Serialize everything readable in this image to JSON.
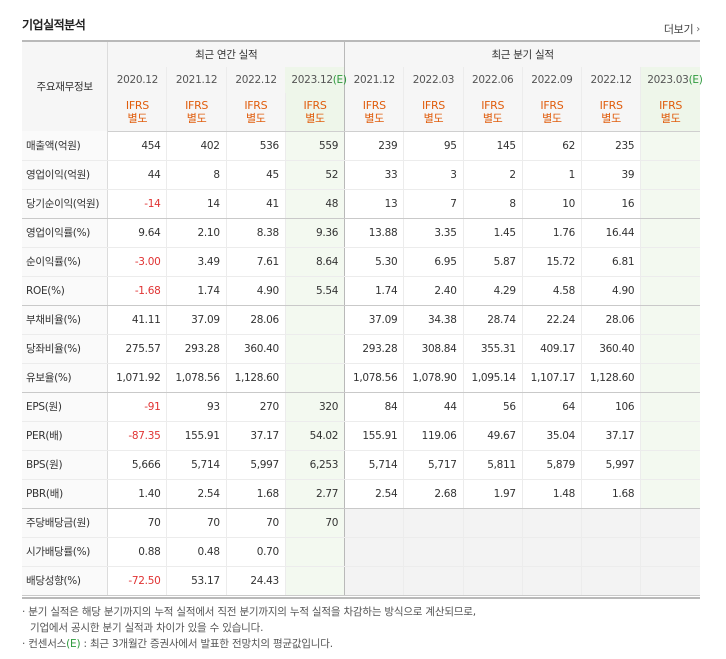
{
  "header": {
    "title": "기업실적분석",
    "more_label": "더보기"
  },
  "table": {
    "row_header_label": "주요재무정보",
    "group_annual": "최근 연간 실적",
    "group_quarter": "최근 분기 실적",
    "annual_periods": [
      "2020.12",
      "2021.12",
      "2022.12",
      "2023.12"
    ],
    "estimate_marker": "(E)",
    "quarter_periods": [
      "2021.12",
      "2022.03",
      "2022.06",
      "2022.09",
      "2022.12",
      "2023.03"
    ],
    "ifrs_line1": "IFRS",
    "ifrs_line2": "별도",
    "rows": [
      {
        "label": "매출액(억원)",
        "annual": [
          "454",
          "402",
          "536",
          "559"
        ],
        "quarter": [
          "239",
          "95",
          "145",
          "62",
          "235",
          ""
        ]
      },
      {
        "label": "영업이익(억원)",
        "annual": [
          "44",
          "8",
          "45",
          "52"
        ],
        "quarter": [
          "33",
          "3",
          "2",
          "1",
          "39",
          ""
        ]
      },
      {
        "label": "당기순이익(억원)",
        "annual": [
          "-14",
          "14",
          "41",
          "48"
        ],
        "quarter": [
          "13",
          "7",
          "8",
          "10",
          "16",
          ""
        ]
      },
      {
        "label": "영업이익률(%)",
        "annual": [
          "9.64",
          "2.10",
          "8.38",
          "9.36"
        ],
        "quarter": [
          "13.88",
          "3.35",
          "1.45",
          "1.76",
          "16.44",
          ""
        ]
      },
      {
        "label": "순이익률(%)",
        "annual": [
          "-3.00",
          "3.49",
          "7.61",
          "8.64"
        ],
        "quarter": [
          "5.30",
          "6.95",
          "5.87",
          "15.72",
          "6.81",
          ""
        ]
      },
      {
        "label": "ROE(%)",
        "annual": [
          "-1.68",
          "1.74",
          "4.90",
          "5.54"
        ],
        "quarter": [
          "1.74",
          "2.40",
          "4.29",
          "4.58",
          "4.90",
          ""
        ]
      },
      {
        "label": "부채비율(%)",
        "annual": [
          "41.11",
          "37.09",
          "28.06",
          ""
        ],
        "quarter": [
          "37.09",
          "34.38",
          "28.74",
          "22.24",
          "28.06",
          ""
        ]
      },
      {
        "label": "당좌비율(%)",
        "annual": [
          "275.57",
          "293.28",
          "360.40",
          ""
        ],
        "quarter": [
          "293.28",
          "308.84",
          "355.31",
          "409.17",
          "360.40",
          ""
        ]
      },
      {
        "label": "유보율(%)",
        "annual": [
          "1,071.92",
          "1,078.56",
          "1,128.60",
          ""
        ],
        "quarter": [
          "1,078.56",
          "1,078.90",
          "1,095.14",
          "1,107.17",
          "1,128.60",
          ""
        ]
      },
      {
        "label": "EPS(원)",
        "annual": [
          "-91",
          "93",
          "270",
          "320"
        ],
        "quarter": [
          "84",
          "44",
          "56",
          "64",
          "106",
          ""
        ]
      },
      {
        "label": "PER(배)",
        "annual": [
          "-87.35",
          "155.91",
          "37.17",
          "54.02"
        ],
        "quarter": [
          "155.91",
          "119.06",
          "49.67",
          "35.04",
          "37.17",
          ""
        ]
      },
      {
        "label": "BPS(원)",
        "annual": [
          "5,666",
          "5,714",
          "5,997",
          "6,253"
        ],
        "quarter": [
          "5,714",
          "5,717",
          "5,811",
          "5,879",
          "5,997",
          ""
        ]
      },
      {
        "label": "PBR(배)",
        "annual": [
          "1.40",
          "2.54",
          "1.68",
          "2.77"
        ],
        "quarter": [
          "2.54",
          "2.68",
          "1.97",
          "1.48",
          "1.68",
          ""
        ]
      },
      {
        "label": "주당배당금(원)",
        "annual": [
          "70",
          "70",
          "70",
          "70"
        ],
        "quarter": [
          "",
          "",
          "",
          "",
          "",
          ""
        ]
      },
      {
        "label": "시가배당률(%)",
        "annual": [
          "0.88",
          "0.48",
          "0.70",
          ""
        ],
        "quarter": [
          "",
          "",
          "",
          "",
          "",
          ""
        ]
      },
      {
        "label": "배당성향(%)",
        "annual": [
          "-72.50",
          "53.17",
          "24.43",
          ""
        ],
        "quarter": [
          "",
          "",
          "",
          "",
          "",
          ""
        ]
      }
    ]
  },
  "notes": {
    "line1": "· 분기 실적은 해당 분기까지의 누적 실적에서 직전 분기까지의 누적 실적을 차감하는 방식으로 계산되므로,",
    "line2": "기업에서 공시한 분기 실적과 차이가 있을 수 있습니다.",
    "line3_prefix": "· 컨센서스",
    "line3_suffix": ": 최근 3개월간 증권사에서 발표한 전망치의 평균값입니다."
  }
}
